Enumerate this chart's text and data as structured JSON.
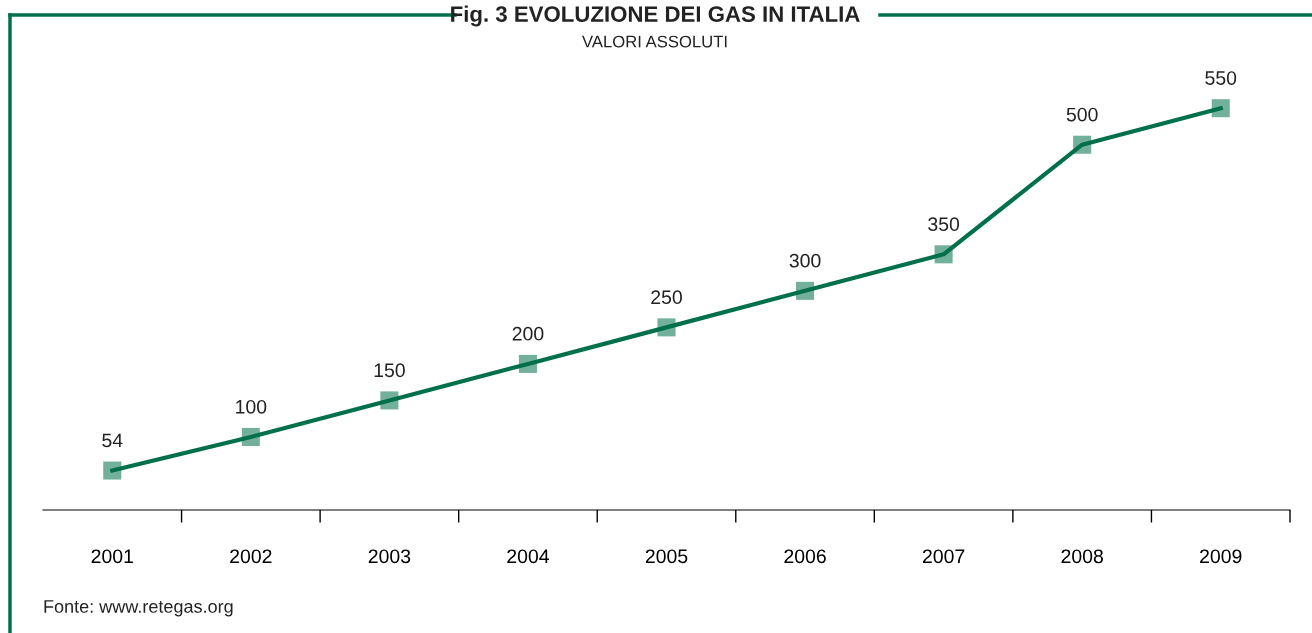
{
  "chart_data": {
    "type": "line",
    "title": "Fig. 3 EVOLUZIONE DEI GAS IN ITALIA",
    "subtitle": "VALORI ASSOLUTI",
    "categories": [
      "2001",
      "2002",
      "2003",
      "2004",
      "2005",
      "2006",
      "2007",
      "2008",
      "2009"
    ],
    "series": [
      {
        "color": "#00704a",
        "values": [
          54,
          100,
          150,
          200,
          250,
          300,
          350,
          500,
          550
        ]
      }
    ],
    "marker": "square",
    "data_labels": true,
    "grid": false,
    "legend": false,
    "tick_labels": "x",
    "annotations": [
      "Fonte: www.retegas.org"
    ]
  }
}
